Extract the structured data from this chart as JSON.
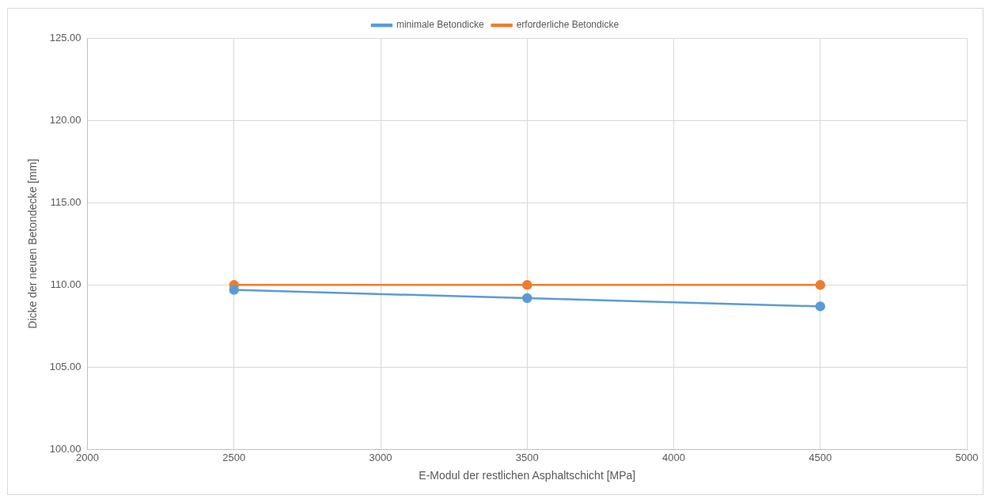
{
  "chart_data": {
    "type": "line",
    "xlabel": "E-Modul der restlichen Asphaltschicht [MPa]",
    "ylabel": "Dicke der neuen Betondecke [mm]",
    "x": [
      2500,
      3500,
      4500
    ],
    "series": [
      {
        "name": "minimale Betondicke",
        "color": "#5b9bd5",
        "values": [
          109.7,
          109.2,
          108.7
        ]
      },
      {
        "name": "erforderliche Betondicke",
        "color": "#ed7d31",
        "values": [
          110,
          110,
          110
        ]
      }
    ],
    "xlim": [
      2000,
      5000
    ],
    "xticks": [
      2000,
      2500,
      3000,
      3500,
      4000,
      4500,
      5000
    ],
    "ylim": [
      100,
      125
    ],
    "yticks": [
      {
        "value": 100,
        "label": "100.00"
      },
      {
        "value": 105,
        "label": "105.00"
      },
      {
        "value": 110,
        "label": "110.00"
      },
      {
        "value": 115,
        "label": "115.00"
      },
      {
        "value": 120,
        "label": "120.00"
      },
      {
        "value": 125,
        "label": "125.00"
      }
    ],
    "grid": true,
    "legend": "top",
    "marker": "circle",
    "line_style": "solid"
  }
}
